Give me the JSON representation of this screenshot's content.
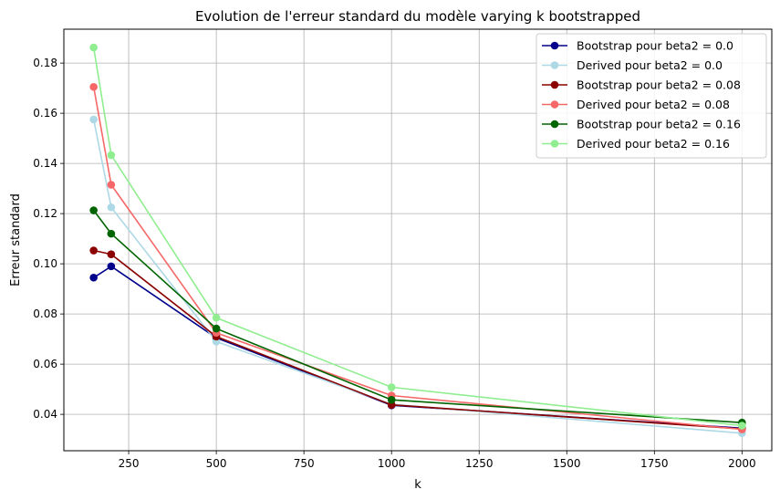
{
  "chart_data": {
    "type": "line",
    "title": "Evolution de l'erreur standard du modèle varying k bootstrapped",
    "xlabel": "k",
    "ylabel": "Erreur standard",
    "x": [
      150,
      200,
      500,
      1000,
      2000
    ],
    "xlim": [
      65,
      2085
    ],
    "ylim": [
      0.0255,
      0.1935
    ],
    "xticks": [
      250,
      500,
      750,
      1000,
      1250,
      1500,
      1750,
      2000
    ],
    "yticks": [
      0.04,
      0.06,
      0.08,
      0.1,
      0.12,
      0.14,
      0.16,
      0.18
    ],
    "xtick_labels": [
      "250",
      "500",
      "750",
      "1000",
      "1250",
      "1500",
      "1750",
      "2000"
    ],
    "ytick_labels": [
      "0.04",
      "0.06",
      "0.08",
      "0.10",
      "0.12",
      "0.14",
      "0.16",
      "0.18"
    ],
    "grid": true,
    "legend_position": "top-right",
    "series": [
      {
        "name": "Bootstrap pour beta2 = 0.0",
        "color": "#00008b",
        "values": [
          0.0945,
          0.099,
          0.0705,
          0.0436,
          0.0345
        ]
      },
      {
        "name": "Derived pour beta2 = 0.0",
        "color": "#add8e6",
        "values": [
          0.1575,
          0.1225,
          0.069,
          0.044,
          0.0325
        ]
      },
      {
        "name": "Bootstrap pour beta2 = 0.08",
        "color": "#8b0000",
        "values": [
          0.1053,
          0.1038,
          0.071,
          0.0438,
          0.0342
        ]
      },
      {
        "name": "Derived pour beta2 = 0.08",
        "color": "#f66868",
        "values": [
          0.1705,
          0.1315,
          0.0725,
          0.0475,
          0.034
        ]
      },
      {
        "name": "Bootstrap pour beta2 = 0.16",
        "color": "#006400",
        "values": [
          0.1213,
          0.112,
          0.0742,
          0.0458,
          0.0367
        ]
      },
      {
        "name": "Derived pour beta2 = 0.16",
        "color": "#90ee90",
        "values": [
          0.1862,
          0.1433,
          0.0785,
          0.0508,
          0.0355
        ]
      }
    ]
  }
}
